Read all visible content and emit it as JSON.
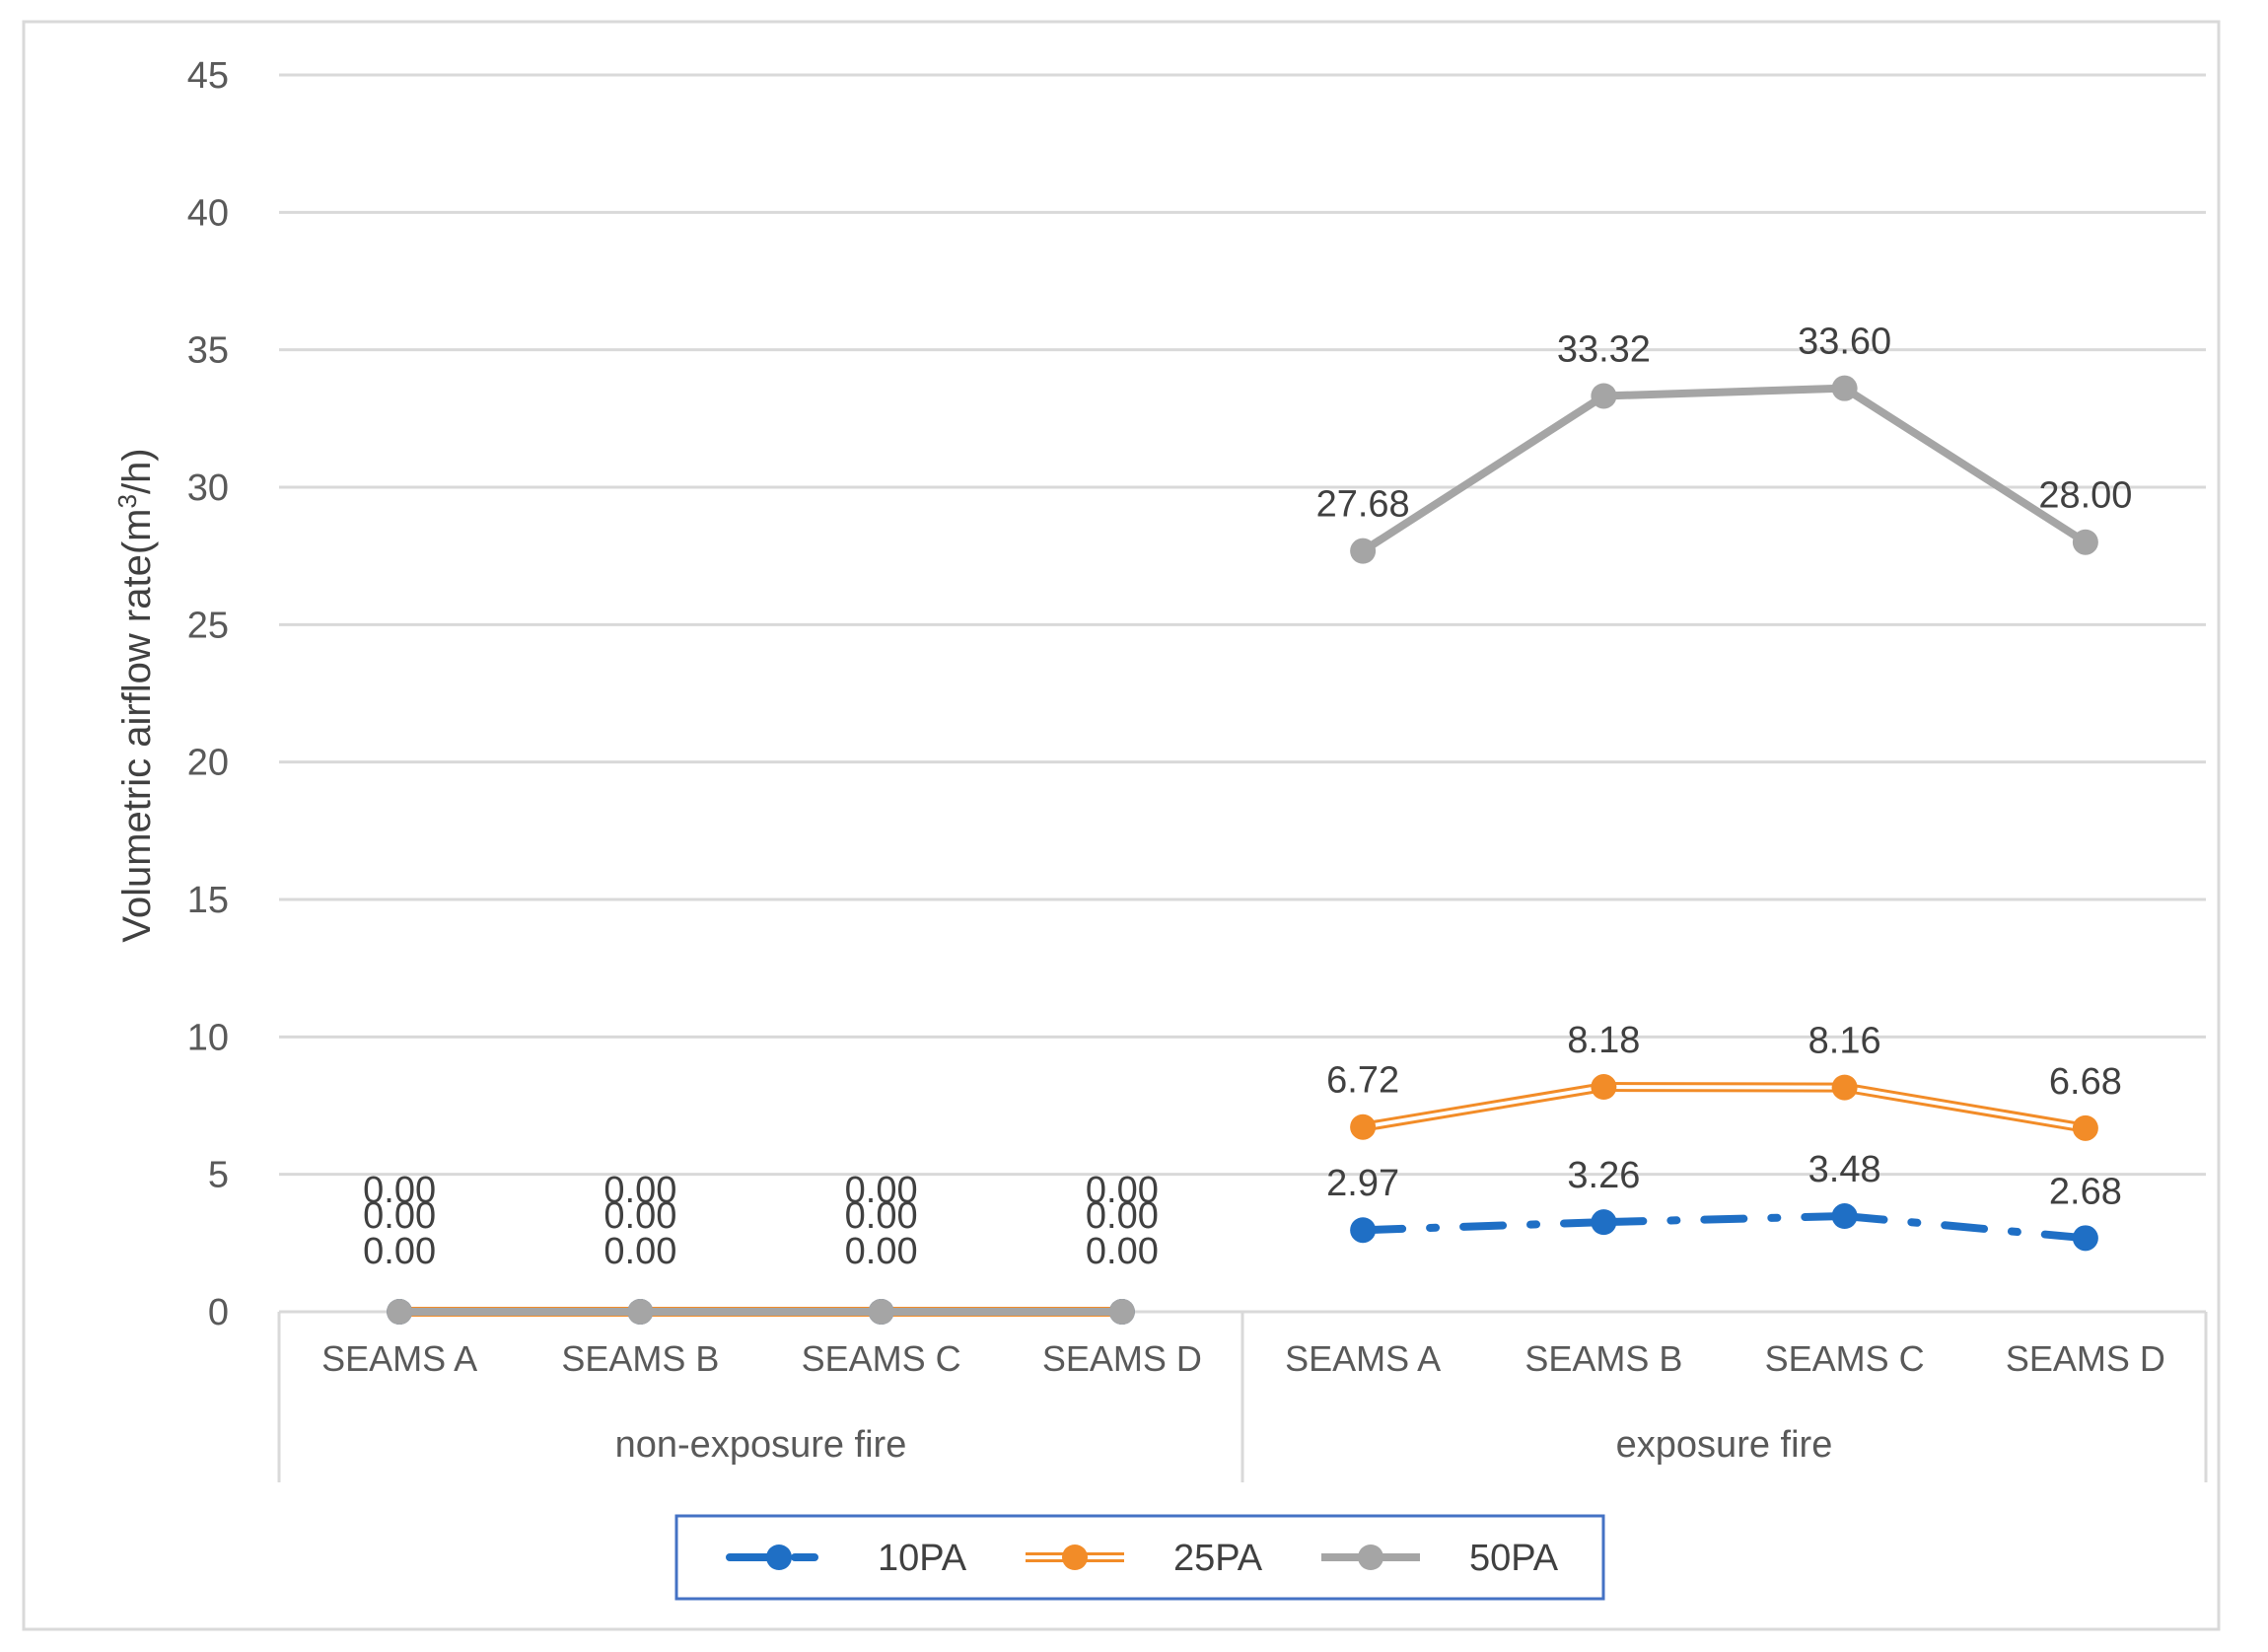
{
  "chart_data": {
    "type": "line",
    "title": "",
    "xlabel": "",
    "ylabel": "Volumetric airflow rate(m",
    "ylabel_sup": "3",
    "ylabel_tail": "/h)",
    "ylim": [
      0,
      45
    ],
    "yticks": [
      0,
      5,
      10,
      15,
      20,
      25,
      30,
      35,
      40,
      45
    ],
    "grid": true,
    "legend_position": "bottom",
    "groups": [
      {
        "label": "non-exposure fire",
        "categories": [
          "SEAMS A",
          "SEAMS B",
          "SEAMS C",
          "SEAMS D"
        ]
      },
      {
        "label": "exposure fire",
        "categories": [
          "SEAMS A",
          "SEAMS B",
          "SEAMS C",
          "SEAMS D"
        ]
      }
    ],
    "series": [
      {
        "name": "10PA",
        "color": "#1F6FC5",
        "style": "dash-dot",
        "values": [
          0,
          0,
          0,
          0,
          2.97,
          3.26,
          3.48,
          2.68
        ],
        "labels": [
          "0.00",
          "0.00",
          "0.00",
          "0.00",
          "2.97",
          "3.26",
          "3.48",
          "2.68"
        ]
      },
      {
        "name": "25PA",
        "color": "#F28C28",
        "style": "double",
        "values": [
          0,
          0,
          0,
          0,
          6.72,
          8.18,
          8.16,
          6.68
        ],
        "labels": [
          "0.00",
          "0.00",
          "0.00",
          "0.00",
          "6.72",
          "8.18",
          "8.16",
          "6.68"
        ]
      },
      {
        "name": "50PA",
        "color": "#A5A5A5",
        "style": "solid",
        "values": [
          0,
          0,
          0,
          0,
          27.68,
          33.32,
          33.6,
          28.0
        ],
        "labels": [
          "0.00",
          "0.00",
          "0.00",
          "0.00",
          "27.68",
          "33.32",
          "33.60",
          "28.00"
        ]
      }
    ]
  }
}
